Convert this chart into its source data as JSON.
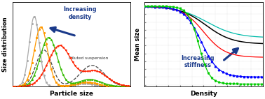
{
  "fig_width": 3.78,
  "fig_height": 1.42,
  "dpi": 100,
  "left_xlabel": "Particle size",
  "left_ylabel": "Size distribution",
  "right_xlabel": "Density",
  "right_ylabel": "Mean size",
  "arrow_text_left": "Increasing\ndensity",
  "arrow_text_right": "Increasing\nstiffness",
  "diluted_text": "Diluted suspension",
  "background": "#ffffff",
  "colors_left": {
    "gray": "#aaaaaa",
    "orange": "#ff9900",
    "green": "#33bb00",
    "red": "#ff2200",
    "dashed": "#444444"
  },
  "colors_right": {
    "cyan": "#00bbaa",
    "black": "#000000",
    "red": "#ff0000",
    "blue": "#0000ff",
    "green": "#00cc00"
  },
  "arrow_color": "#1a3a8a"
}
